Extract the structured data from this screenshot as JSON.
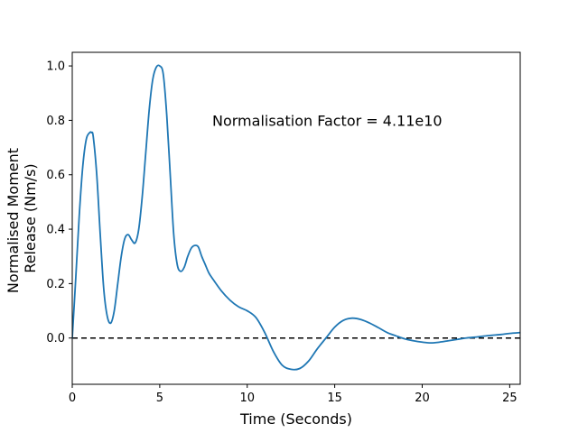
{
  "chart_data": {
    "type": "line",
    "title": "",
    "xlabel": "Time (Seconds)",
    "ylabel_lines": [
      "Normalised Moment",
      "Release (Nm/s)"
    ],
    "xlim": [
      0,
      25.6
    ],
    "ylim": [
      -0.17,
      1.05
    ],
    "x_ticks": [
      0,
      5,
      10,
      15,
      20,
      25
    ],
    "y_ticks": [
      0.0,
      0.2,
      0.4,
      0.6,
      0.8,
      1.0
    ],
    "x_tick_labels": [
      "0",
      "5",
      "10",
      "15",
      "20",
      "25"
    ],
    "y_tick_labels": [
      "0.0",
      "0.2",
      "0.4",
      "0.6",
      "0.8",
      "1.0"
    ],
    "grid": false,
    "annotation": {
      "text": "Normalisation Factor = 4.11e10",
      "x": 8.0,
      "y": 0.8
    },
    "reference_line": {
      "y": 0.0,
      "style": "dashed",
      "color": "#000000"
    },
    "series": [
      {
        "color": "#1f77b4",
        "x": [
          0,
          0.2,
          0.4,
          0.6,
          0.8,
          1.0,
          1.1,
          1.2,
          1.4,
          1.6,
          1.8,
          2.0,
          2.2,
          2.4,
          2.6,
          2.8,
          3.0,
          3.2,
          3.4,
          3.6,
          3.8,
          4.0,
          4.2,
          4.4,
          4.6,
          4.8,
          5.0,
          5.2,
          5.4,
          5.6,
          5.8,
          6.0,
          6.2,
          6.4,
          6.6,
          6.8,
          7.0,
          7.2,
          7.4,
          7.6,
          7.8,
          8.0,
          8.5,
          9.0,
          9.5,
          10.0,
          10.5,
          11.0,
          11.5,
          12.0,
          12.5,
          13.0,
          13.5,
          14.0,
          14.5,
          15.0,
          15.5,
          16.0,
          16.5,
          17.0,
          17.5,
          18.0,
          18.5,
          19.0,
          19.5,
          20.0,
          20.5,
          21.0,
          21.5,
          22.0,
          22.5,
          23.0,
          23.5,
          24.0,
          24.5,
          25.0,
          25.6
        ],
        "y": [
          0.0,
          0.22,
          0.45,
          0.63,
          0.73,
          0.755,
          0.755,
          0.74,
          0.6,
          0.38,
          0.18,
          0.08,
          0.055,
          0.1,
          0.2,
          0.3,
          0.365,
          0.38,
          0.36,
          0.35,
          0.4,
          0.52,
          0.68,
          0.84,
          0.95,
          0.995,
          1.0,
          0.97,
          0.82,
          0.6,
          0.38,
          0.27,
          0.245,
          0.26,
          0.3,
          0.33,
          0.34,
          0.335,
          0.3,
          0.27,
          0.24,
          0.22,
          0.175,
          0.14,
          0.115,
          0.1,
          0.075,
          0.02,
          -0.05,
          -0.1,
          -0.115,
          -0.112,
          -0.085,
          -0.04,
          0.0,
          0.04,
          0.065,
          0.073,
          0.068,
          0.055,
          0.038,
          0.02,
          0.008,
          -0.003,
          -0.01,
          -0.015,
          -0.018,
          -0.015,
          -0.01,
          -0.005,
          0.0,
          0.003,
          0.007,
          0.01,
          0.013,
          0.017,
          0.02
        ]
      }
    ]
  }
}
